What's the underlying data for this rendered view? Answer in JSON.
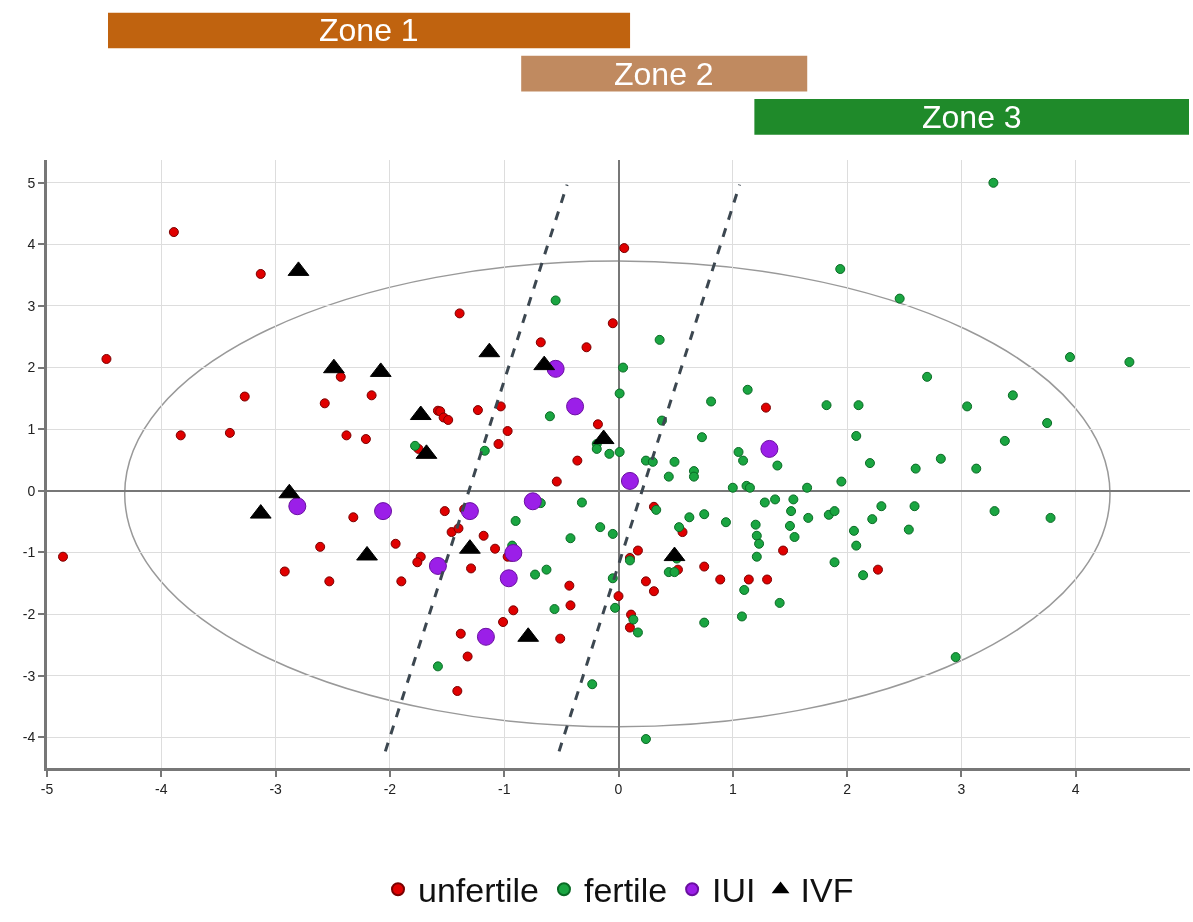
{
  "chart_data": {
    "type": "scatter",
    "xlim": [
      -5,
      5
    ],
    "ylim": [
      -4.5,
      5.37
    ],
    "xticks": [
      -5,
      -4,
      -3,
      -2,
      -1,
      0,
      1,
      2,
      3,
      4
    ],
    "yticks": [
      -4,
      -3,
      -2,
      -1,
      0,
      1,
      2,
      3,
      4,
      5
    ],
    "grid": true,
    "legend": "bottom",
    "annotations": [
      "Zone 1",
      "Zone 2",
      "Zone 3"
    ],
    "series": [
      {
        "name": "unfertile",
        "marker": "circle",
        "color": "#e00000",
        "x": [
          -3.89,
          -3.13,
          -4.48,
          -3.27,
          -3.83,
          -3.4,
          -2.43,
          -2.57,
          -2.16,
          -2.38,
          -2.21,
          -1.58,
          -1.75,
          0.05,
          -1.39,
          -0.05,
          -0.68,
          -0.28,
          1.29,
          -1.56,
          -1.53,
          -1.49,
          -1.23,
          -1.03,
          -0.97,
          -1.05,
          -0.18,
          -0.36,
          -0.54,
          0.31,
          0.56,
          2.27,
          1.44,
          0.17,
          0.1,
          0.52,
          0.75,
          0.89,
          1.14,
          1.3,
          0.24,
          0.31,
          0.0,
          0.11,
          0.1,
          -2.32,
          -2.61,
          -2.92,
          -2.53,
          -4.86,
          -1.95,
          -1.9,
          -1.73,
          -1.76,
          -1.52,
          -1.35,
          -1.46,
          -1.4,
          -1.29,
          -1.18,
          -1.08,
          -0.97,
          -0.94,
          -0.43,
          -0.42,
          -0.92,
          -1.01,
          -1.38,
          -0.51,
          -1.32,
          -1.41
        ],
        "values": [
          4.2,
          3.52,
          2.14,
          1.53,
          0.9,
          0.94,
          1.85,
          1.42,
          1.55,
          0.9,
          0.84,
          1.3,
          0.68,
          3.94,
          2.88,
          2.72,
          2.41,
          2.33,
          1.35,
          1.29,
          1.19,
          1.15,
          1.31,
          1.37,
          0.97,
          0.76,
          1.08,
          0.49,
          0.15,
          -0.26,
          -0.67,
          -1.28,
          -0.97,
          -0.97,
          -1.09,
          -1.28,
          -1.23,
          -1.44,
          -1.44,
          -1.44,
          -1.47,
          -1.63,
          -1.71,
          -2.01,
          -2.22,
          -0.43,
          -0.91,
          -1.31,
          -1.47,
          -1.07,
          -0.86,
          -1.47,
          -1.07,
          -1.16,
          -0.33,
          -0.3,
          -0.67,
          -0.61,
          -1.26,
          -0.73,
          -0.94,
          -1.07,
          -1.07,
          -1.54,
          -1.86,
          -1.94,
          -2.13,
          -2.32,
          -2.4,
          -2.69,
          -3.25
        ]
      },
      {
        "name": "fertile",
        "marker": "circle",
        "color": "#1aa541",
        "x": [
          -1.78,
          -0.55,
          0.36,
          0.04,
          0.01,
          1.13,
          0.81,
          -0.6,
          -0.19,
          -0.19,
          -0.08,
          0.01,
          0.38,
          0.73,
          1.05,
          1.09,
          1.39,
          0.24,
          0.3,
          0.49,
          0.66,
          0.66,
          0.44,
          1.0,
          1.12,
          1.15,
          1.65,
          -1.17,
          3.28,
          1.94,
          2.46,
          3.95,
          4.47,
          2.7,
          1.82,
          2.1,
          2.08,
          3.05,
          3.45,
          3.75,
          3.38,
          2.2,
          2.6,
          2.82,
          3.13,
          1.95,
          0.33,
          -0.16,
          -0.05,
          0.53,
          0.62,
          0.75,
          0.94,
          1.2,
          1.21,
          1.23,
          1.21,
          1.28,
          1.37,
          1.53,
          1.51,
          1.5,
          1.54,
          1.66,
          1.84,
          1.89,
          2.06,
          2.08,
          1.89,
          2.14,
          2.22,
          2.3,
          2.59,
          2.54,
          3.29,
          3.78,
          2.95,
          0.1,
          0.51,
          0.44,
          0.49,
          1.1,
          1.41,
          1.08,
          0.75,
          -0.05,
          -0.03,
          0.13,
          0.17,
          0.24,
          -0.93,
          -0.9,
          -0.68,
          -0.32,
          -0.42,
          -0.73,
          -0.63,
          -0.56,
          -1.58,
          -0.23
        ],
        "values": [
          0.73,
          3.09,
          2.45,
          2.0,
          1.58,
          1.64,
          1.45,
          1.21,
          0.76,
          0.68,
          0.6,
          0.63,
          1.14,
          0.87,
          0.63,
          0.49,
          0.41,
          0.49,
          0.47,
          0.47,
          0.32,
          0.23,
          0.23,
          0.05,
          0.08,
          0.05,
          0.05,
          0.65,
          5.0,
          3.6,
          3.12,
          2.17,
          2.09,
          1.85,
          1.39,
          1.39,
          0.89,
          1.37,
          1.55,
          1.1,
          0.81,
          0.45,
          0.36,
          0.52,
          0.36,
          0.15,
          -0.31,
          -0.59,
          -0.7,
          -0.59,
          -0.43,
          -0.38,
          -0.51,
          -0.55,
          -0.73,
          -0.86,
          -1.07,
          -0.19,
          -0.14,
          -0.14,
          -0.33,
          -0.57,
          -0.75,
          -0.44,
          -0.39,
          -0.33,
          -0.65,
          -0.89,
          -1.16,
          -1.37,
          -0.46,
          -0.25,
          -0.25,
          -0.63,
          -0.33,
          -0.44,
          -2.7,
          -1.13,
          -1.1,
          -1.32,
          -1.32,
          -1.61,
          -1.82,
          -2.04,
          -2.14,
          -1.42,
          -1.9,
          -2.09,
          -2.3,
          -4.03,
          -0.89,
          -0.49,
          -0.2,
          -0.19,
          -0.77,
          -1.36,
          -1.28,
          -1.92,
          -2.85,
          -3.14
        ]
      },
      {
        "name": "IUI",
        "marker": "circle",
        "color": "#9b1fe8",
        "x": [
          -0.55,
          -0.38,
          1.32,
          0.1,
          -0.75,
          -2.81,
          -2.06,
          -1.3,
          -0.92,
          -1.58,
          -0.96,
          -1.16
        ],
        "values": [
          1.98,
          1.37,
          0.68,
          0.16,
          -0.17,
          -0.25,
          -0.33,
          -0.33,
          -1.01,
          -1.22,
          -1.42,
          -2.37
        ]
      },
      {
        "name": "IVF",
        "marker": "triangle",
        "color": "#000000",
        "x": [
          -2.8,
          -1.13,
          -2.49,
          -2.08,
          -0.65,
          -1.73,
          -1.68,
          -0.13,
          -2.88,
          -3.13,
          -2.2,
          -1.3,
          0.49,
          -0.79
        ],
        "values": [
          3.57,
          2.25,
          1.99,
          1.93,
          2.04,
          1.23,
          0.6,
          0.84,
          -0.04,
          -0.37,
          -1.05,
          -0.94,
          -1.06,
          -2.37
        ]
      },
      {
        "type": "line",
        "line_style": "dashed",
        "color": "#3c4750",
        "x": [
          -2.04,
          -0.45
        ],
        "values": [
          -4.23,
          4.97
        ]
      },
      {
        "type": "line",
        "line_style": "dashed",
        "color": "#3c4750",
        "x": [
          -0.52,
          1.06
        ],
        "values": [
          -4.23,
          4.97
        ]
      }
    ]
  }
}
